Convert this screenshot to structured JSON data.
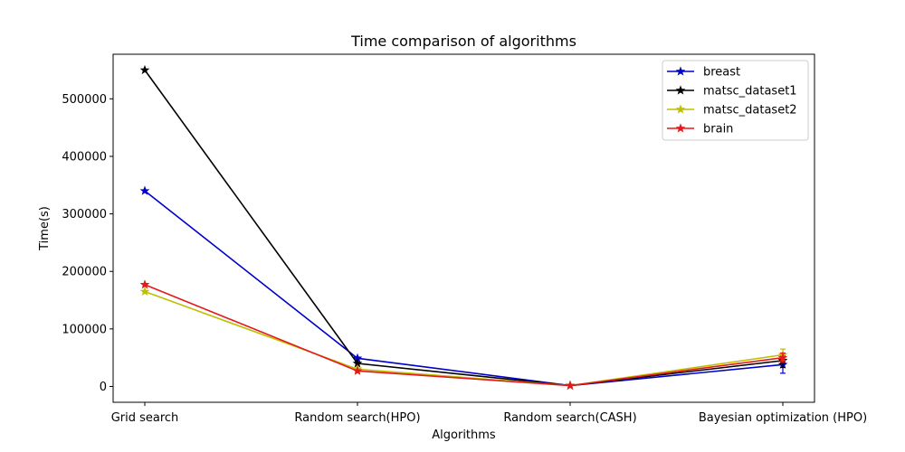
{
  "chart_data": {
    "type": "line",
    "title": "Time comparison of algorithms",
    "xlabel": "Algorithms",
    "ylabel": "Time(s)",
    "categories": [
      "Grid search",
      "Random search(HPO)",
      "Random search(CASH)",
      "Bayesian optimization (HPO)"
    ],
    "ylim": [
      -27500,
      577500
    ],
    "yticks": [
      0,
      100000,
      200000,
      300000,
      400000,
      500000
    ],
    "grid": false,
    "legend_position": "top-right",
    "marker": "star",
    "series": [
      {
        "name": "breast",
        "color": "#0000cc",
        "values": [
          340000,
          49000,
          1500,
          38000
        ],
        "error": [
          0,
          0,
          0,
          15000
        ]
      },
      {
        "name": "matsc_dataset1",
        "color": "#000000",
        "values": [
          550000,
          40000,
          1500,
          45000
        ],
        "error": [
          0,
          0,
          0,
          12000
        ]
      },
      {
        "name": "matsc_dataset2",
        "color": "#bfbf00",
        "values": [
          165000,
          30000,
          1500,
          55000
        ],
        "error": [
          0,
          0,
          0,
          10000
        ]
      },
      {
        "name": "brain",
        "color": "#e31a1c",
        "values": [
          177000,
          27000,
          1500,
          50000
        ],
        "error": [
          0,
          0,
          0,
          8000
        ]
      }
    ]
  }
}
